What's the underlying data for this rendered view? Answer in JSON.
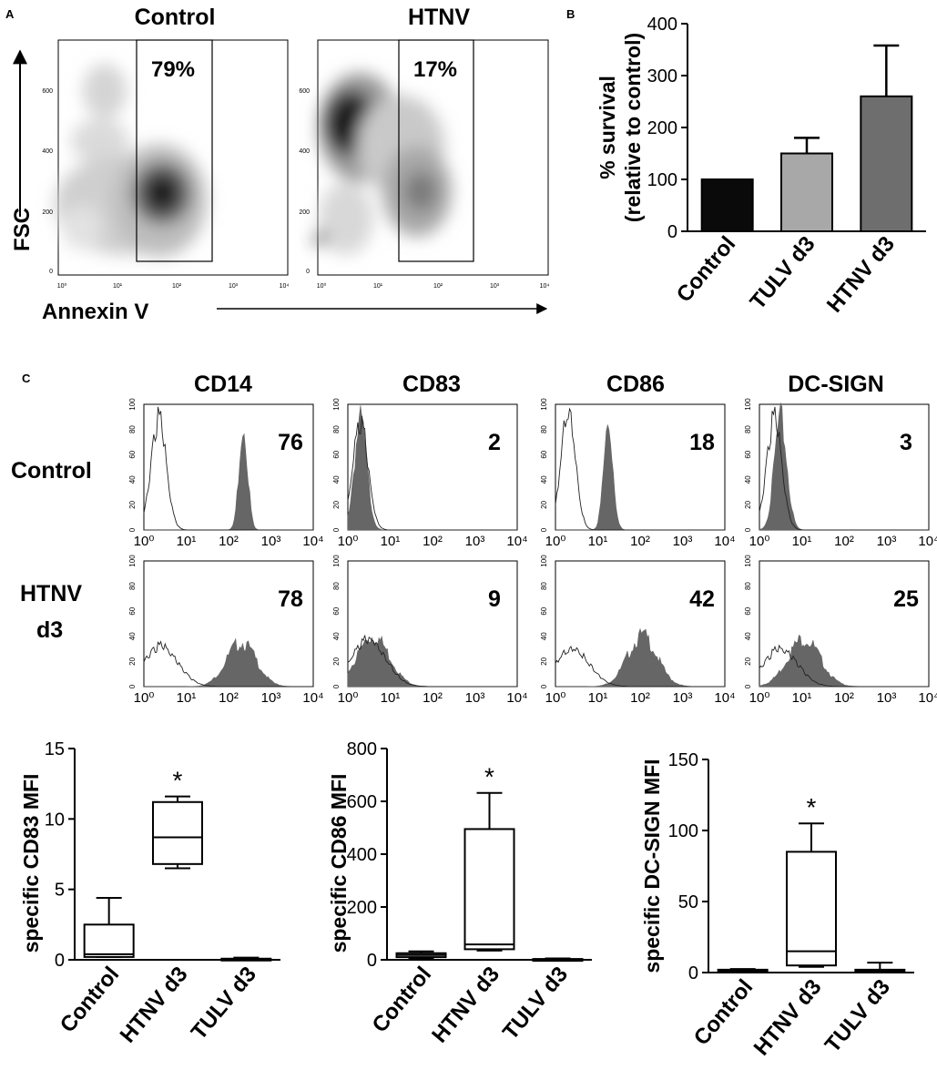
{
  "panel_a": {
    "letter": "A",
    "y_axis_label": "FSC",
    "x_axis_label": "Annexin V",
    "y_ticks": [
      "0",
      "200",
      "400",
      "600"
    ],
    "x_ticks": [
      "10⁰",
      "10¹",
      "10²",
      "10³",
      "10⁴"
    ],
    "plots": [
      {
        "title": "Control",
        "gate_percent": "79%"
      },
      {
        "title": "HTNV",
        "gate_percent": "17%"
      }
    ]
  },
  "panel_b": {
    "letter": "B",
    "y_label_line1": "% survival",
    "y_label_line2": "(relative to control)"
  },
  "panel_c": {
    "letter": "C",
    "columns": [
      "CD14",
      "CD83",
      "CD86",
      "DC-SIGN"
    ],
    "rows": [
      {
        "label_lines": [
          "Control"
        ],
        "values": [
          "76",
          "2",
          "18",
          "3"
        ]
      },
      {
        "label_lines": [
          "HTNV",
          "d3"
        ],
        "values": [
          "78",
          "9",
          "42",
          "25"
        ]
      }
    ],
    "hist_y_ticks": [
      "0",
      "20",
      "40",
      "60",
      "80",
      "100"
    ],
    "hist_x_ticks": [
      "10⁰",
      "10¹",
      "10²",
      "10³",
      "10⁴"
    ]
  },
  "colors": {
    "bar_control": "#0a0a0a",
    "bar_tulv": "#a8a8a8",
    "bar_htnv": "#6e6e6e",
    "hist_fill": "#666666"
  },
  "chart_data": [
    {
      "type": "bar",
      "panel": "B",
      "categories": [
        "Control",
        "TULV d3",
        "HTNV d3"
      ],
      "values": [
        100,
        150,
        260
      ],
      "errors": [
        0,
        30,
        98
      ],
      "ylim": [
        0,
        400
      ],
      "yticks": [
        0,
        100,
        200,
        300,
        400
      ],
      "xlabel": "",
      "ylabel": "% survival (relative to control)"
    },
    {
      "type": "box",
      "categories": [
        "Control",
        "HTNV d3",
        "TULV d3"
      ],
      "ylabel": "specific CD83 MFI",
      "ylim": [
        0,
        15
      ],
      "yticks": [
        0,
        5,
        10,
        15
      ],
      "boxes": [
        {
          "min": 0.2,
          "q1": 0.2,
          "median": 0.4,
          "q3": 2.5,
          "max": 4.4
        },
        {
          "min": 6.5,
          "q1": 6.8,
          "median": 8.7,
          "q3": 11.2,
          "max": 11.6
        },
        {
          "min": 0,
          "q1": 0.02,
          "median": 0.05,
          "q3": 0.08,
          "max": 0.15
        }
      ],
      "significance": [
        "",
        "*",
        ""
      ]
    },
    {
      "type": "box",
      "categories": [
        "Control",
        "HTNV d3",
        "TULV d3"
      ],
      "ylabel": "specific CD86 MFI",
      "ylim": [
        0,
        800
      ],
      "yticks": [
        0,
        200,
        400,
        600,
        800
      ],
      "boxes": [
        {
          "min": 5,
          "q1": 10,
          "median": 18,
          "q3": 25,
          "max": 32
        },
        {
          "min": 35,
          "q1": 40,
          "median": 58,
          "q3": 495,
          "max": 632
        },
        {
          "min": 0,
          "q1": 1,
          "median": 2,
          "q3": 3,
          "max": 5
        }
      ],
      "significance": [
        "",
        "*",
        ""
      ]
    },
    {
      "type": "box",
      "categories": [
        "Control",
        "HTNV d3",
        "TULV d3"
      ],
      "ylabel": "specific DC-SIGN MFI",
      "ylim": [
        0,
        150
      ],
      "yticks": [
        0,
        50,
        100,
        150
      ],
      "boxes": [
        {
          "min": 0.5,
          "q1": 1,
          "median": 1.5,
          "q3": 2,
          "max": 2.5
        },
        {
          "min": 4,
          "q1": 5,
          "median": 15,
          "q3": 85,
          "max": 105
        },
        {
          "min": 0,
          "q1": 0,
          "median": 1,
          "q3": 2,
          "max": 7
        }
      ],
      "significance": [
        "",
        "*",
        ""
      ]
    }
  ]
}
